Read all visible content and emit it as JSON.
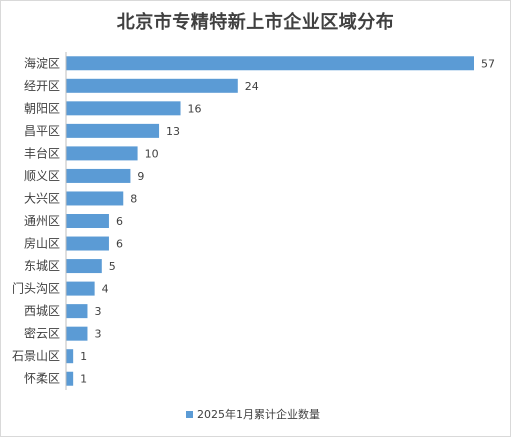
{
  "chart_data": {
    "type": "bar",
    "orientation": "horizontal",
    "title": "北京市专精特新上市企业区域分布",
    "categories": [
      "海淀区",
      "经开区",
      "朝阳区",
      "昌平区",
      "丰台区",
      "顺义区",
      "大兴区",
      "通州区",
      "房山区",
      "东城区",
      "门头沟区",
      "西城区",
      "密云区",
      "石景山区",
      "怀柔区"
    ],
    "series": [
      {
        "name": "2025年1月累计企业数量",
        "values": [
          57,
          24,
          16,
          13,
          10,
          9,
          8,
          6,
          6,
          5,
          4,
          3,
          3,
          1,
          1
        ],
        "color": "#5b9bd5"
      }
    ],
    "xlim": [
      0,
      57
    ],
    "grid": false,
    "data_labels": true,
    "legend_position": "bottom",
    "colors": {
      "bar": "#5b9bd5",
      "axis": "#bfbfbf",
      "text": "#404040"
    }
  }
}
